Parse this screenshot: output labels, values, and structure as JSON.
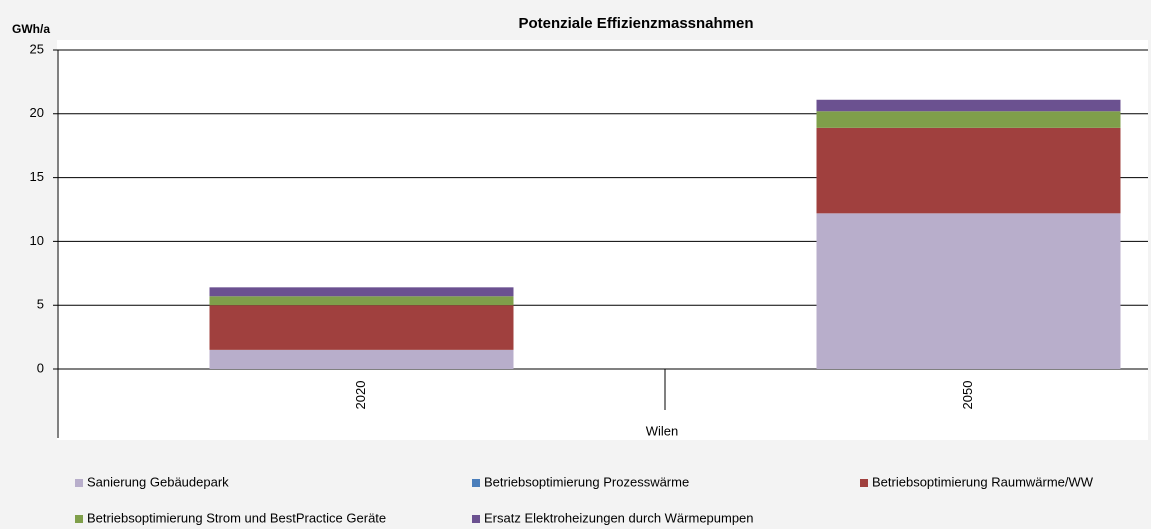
{
  "chart_data": {
    "type": "stacked-bar",
    "title": "Potenziale Effizienzmassnahmen",
    "y_label": "GWh/a",
    "x_label": "Wilen",
    "categories": [
      "2020",
      "2050"
    ],
    "series": [
      {
        "name": "Sanierung Gebäudepark",
        "color": "#b8aecb",
        "values": [
          1.5,
          12.2
        ]
      },
      {
        "name": "Betriebsoptimierung Prozesswärme",
        "color": "#4a7ebb",
        "values": [
          0,
          0
        ]
      },
      {
        "name": "Betriebsoptimierung Raumwärme/WW",
        "color": "#a0403e",
        "values": [
          3.5,
          6.7
        ]
      },
      {
        "name": "Betriebsoptimierung Strom und BestPractice Geräte",
        "color": "#7f9f4a",
        "values": [
          0.7,
          1.3
        ]
      },
      {
        "name": "Ersatz Elektroheizungen durch Wärmepumpen",
        "color": "#6b5190",
        "values": [
          0.7,
          0.9
        ]
      }
    ],
    "ylim": [
      0,
      25
    ],
    "yticks": [
      0,
      5,
      10,
      15,
      20,
      25
    ],
    "grid": true
  }
}
